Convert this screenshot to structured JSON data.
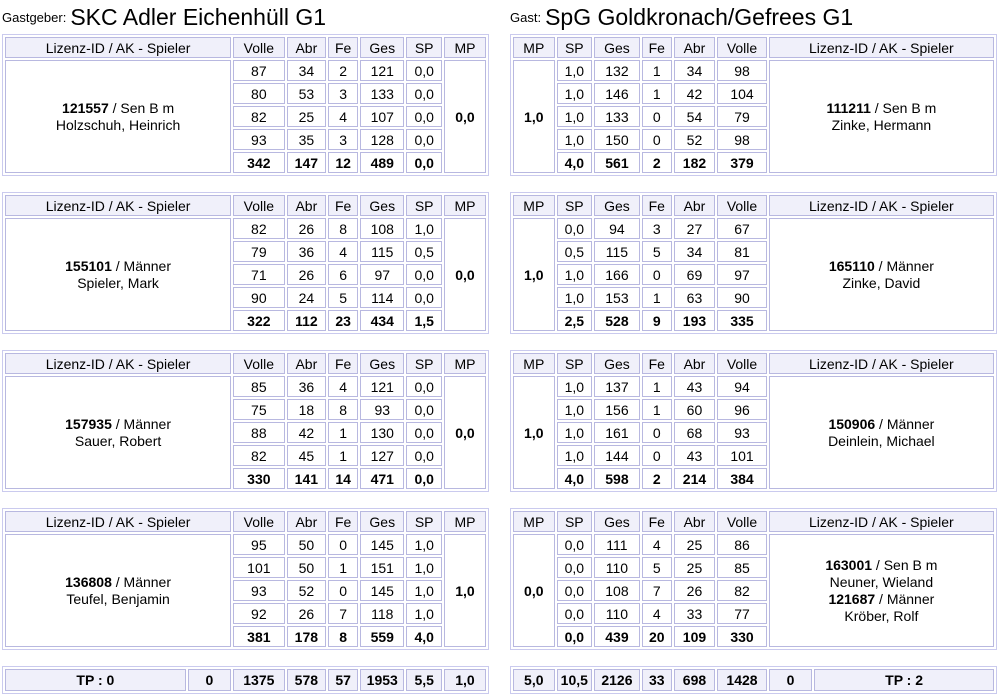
{
  "header": {
    "host_label": "Gastgeber:",
    "host_team": "SKC Adler Eichenhüll G1",
    "guest_label": "Gast:",
    "guest_team": "SpG Goldkronach/Gefrees G1"
  },
  "column_labels": {
    "player": "Lizenz-ID / AK - Spieler",
    "volle": "Volle",
    "abr": "Abr",
    "fe": "Fe",
    "ges": "Ges",
    "sp": "SP",
    "mp": "MP"
  },
  "colors": {
    "cell_border": "#b8b8e0",
    "table_border": "#cacaee",
    "header_bg": "#f0f0fa",
    "cell_bg": "#ffffff",
    "text": "#000000"
  },
  "host": {
    "blocks": [
      {
        "player_lines": [
          {
            "b": "121557",
            "t": " / Sen B m"
          },
          {
            "t": "Holzschuh, Heinrich"
          }
        ],
        "mp": "0,0",
        "rows": [
          [
            "87",
            "34",
            "2",
            "121",
            "0,0"
          ],
          [
            "80",
            "53",
            "3",
            "133",
            "0,0"
          ],
          [
            "82",
            "25",
            "4",
            "107",
            "0,0"
          ],
          [
            "93",
            "35",
            "3",
            "128",
            "0,0"
          ]
        ],
        "total": [
          "342",
          "147",
          "12",
          "489",
          "0,0"
        ]
      },
      {
        "player_lines": [
          {
            "b": "155101",
            "t": " / Männer"
          },
          {
            "t": "Spieler, Mark"
          }
        ],
        "mp": "0,0",
        "rows": [
          [
            "82",
            "26",
            "8",
            "108",
            "1,0"
          ],
          [
            "79",
            "36",
            "4",
            "115",
            "0,5"
          ],
          [
            "71",
            "26",
            "6",
            "97",
            "0,0"
          ],
          [
            "90",
            "24",
            "5",
            "114",
            "0,0"
          ]
        ],
        "total": [
          "322",
          "112",
          "23",
          "434",
          "1,5"
        ]
      },
      {
        "player_lines": [
          {
            "b": "157935",
            "t": " / Männer"
          },
          {
            "t": "Sauer, Robert"
          }
        ],
        "mp": "0,0",
        "rows": [
          [
            "85",
            "36",
            "4",
            "121",
            "0,0"
          ],
          [
            "75",
            "18",
            "8",
            "93",
            "0,0"
          ],
          [
            "88",
            "42",
            "1",
            "130",
            "0,0"
          ],
          [
            "82",
            "45",
            "1",
            "127",
            "0,0"
          ]
        ],
        "total": [
          "330",
          "141",
          "14",
          "471",
          "0,0"
        ]
      },
      {
        "player_lines": [
          {
            "b": "136808",
            "t": " / Männer"
          },
          {
            "t": "Teufel, Benjamin"
          }
        ],
        "mp": "1,0",
        "rows": [
          [
            "95",
            "50",
            "0",
            "145",
            "1,0"
          ],
          [
            "101",
            "50",
            "1",
            "151",
            "1,0"
          ],
          [
            "93",
            "52",
            "0",
            "145",
            "1,0"
          ],
          [
            "92",
            "26",
            "7",
            "118",
            "1,0"
          ]
        ],
        "total": [
          "381",
          "178",
          "8",
          "559",
          "4,0"
        ]
      }
    ],
    "totals": {
      "tp": "TP : 0",
      "extra": "0",
      "cells": [
        "1375",
        "578",
        "57",
        "1953",
        "5,5",
        "1,0"
      ]
    }
  },
  "guest": {
    "blocks": [
      {
        "player_lines": [
          {
            "b": "111211",
            "t": " / Sen B m"
          },
          {
            "t": "Zinke, Hermann"
          }
        ],
        "mp": "1,0",
        "rows": [
          [
            "1,0",
            "132",
            "1",
            "34",
            "98"
          ],
          [
            "1,0",
            "146",
            "1",
            "42",
            "104"
          ],
          [
            "1,0",
            "133",
            "0",
            "54",
            "79"
          ],
          [
            "1,0",
            "150",
            "0",
            "52",
            "98"
          ]
        ],
        "total": [
          "4,0",
          "561",
          "2",
          "182",
          "379"
        ]
      },
      {
        "player_lines": [
          {
            "b": "165110",
            "t": " / Männer"
          },
          {
            "t": "Zinke, David"
          }
        ],
        "mp": "1,0",
        "rows": [
          [
            "0,0",
            "94",
            "3",
            "27",
            "67"
          ],
          [
            "0,5",
            "115",
            "5",
            "34",
            "81"
          ],
          [
            "1,0",
            "166",
            "0",
            "69",
            "97"
          ],
          [
            "1,0",
            "153",
            "1",
            "63",
            "90"
          ]
        ],
        "total": [
          "2,5",
          "528",
          "9",
          "193",
          "335"
        ]
      },
      {
        "player_lines": [
          {
            "b": "150906",
            "t": " / Männer"
          },
          {
            "t": "Deinlein, Michael"
          }
        ],
        "mp": "1,0",
        "rows": [
          [
            "1,0",
            "137",
            "1",
            "43",
            "94"
          ],
          [
            "1,0",
            "156",
            "1",
            "60",
            "96"
          ],
          [
            "1,0",
            "161",
            "0",
            "68",
            "93"
          ],
          [
            "1,0",
            "144",
            "0",
            "43",
            "101"
          ]
        ],
        "total": [
          "4,0",
          "598",
          "2",
          "214",
          "384"
        ]
      },
      {
        "player_lines": [
          {
            "b": "163001",
            "t": " / Sen B m"
          },
          {
            "t": "Neuner, Wieland"
          },
          {
            "b": "121687",
            "t": " / Männer"
          },
          {
            "t": "Kröber, Rolf"
          }
        ],
        "mp": "0,0",
        "rows": [
          [
            "0,0",
            "111",
            "4",
            "25",
            "86"
          ],
          [
            "0,0",
            "110",
            "5",
            "25",
            "85"
          ],
          [
            "0,0",
            "108",
            "7",
            "26",
            "82"
          ],
          [
            "0,0",
            "110",
            "4",
            "33",
            "77"
          ]
        ],
        "total": [
          "0,0",
          "439",
          "20",
          "109",
          "330"
        ]
      }
    ],
    "totals": {
      "cells": [
        "5,0",
        "10,5",
        "2126",
        "33",
        "698",
        "1428"
      ],
      "extra": "0",
      "tp": "TP : 2"
    }
  }
}
